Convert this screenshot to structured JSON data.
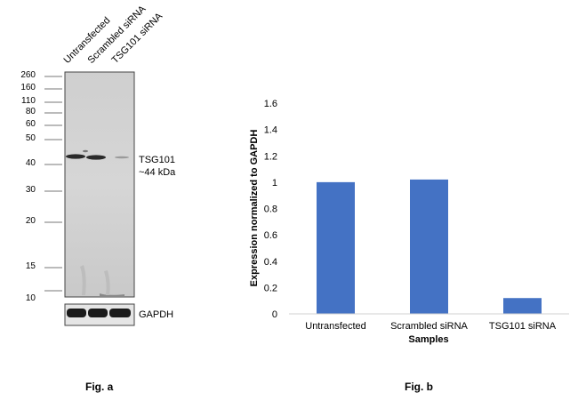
{
  "fig_a": {
    "label": "Fig. a",
    "lanes": [
      "Untransfected",
      "Scrambled siRNA",
      "TSG101 siRNA"
    ],
    "markers": [
      "260",
      "160",
      "110",
      "80",
      "60",
      "50",
      "40",
      "30",
      "20",
      "15",
      "10"
    ],
    "target_band": {
      "name": "TSG101",
      "size": "~44 kDa"
    },
    "loading_control": "GAPDH"
  },
  "fig_b": {
    "label": "Fig. b"
  },
  "chart_data": {
    "type": "bar",
    "categories": [
      "Untransfected",
      "Scrambled siRNA",
      "TSG101 siRNA"
    ],
    "values": [
      1.0,
      1.02,
      0.12
    ],
    "title": "",
    "xlabel": "Samples",
    "ylabel": "Expression normalized to GAPDH",
    "ylim": [
      0,
      1.6
    ],
    "yticks": [
      "0",
      "0.2",
      "0.4",
      "0.6",
      "0.8",
      "1",
      "1.2",
      "1.4",
      "1.6"
    ],
    "grid": false,
    "bar_color": "#4472C4"
  }
}
